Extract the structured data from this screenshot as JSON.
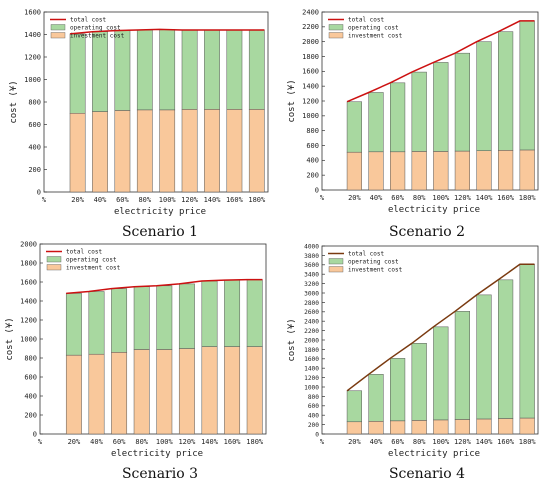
{
  "chart_data": [
    {
      "type": "bar",
      "caption": "Scenario 1",
      "ylabel": "cost (¥)",
      "xlabel": "electricity price",
      "ylim": [
        0,
        1600
      ],
      "ytick_step": 200,
      "x_leading_label": "%",
      "categories": [
        "20%",
        "40%",
        "60%",
        "80%",
        "100%",
        "120%",
        "140%",
        "160%",
        "180%"
      ],
      "legend": {
        "position": "top-left",
        "entries": [
          "total cost",
          "operating cost",
          "investment cost"
        ]
      },
      "series": [
        {
          "name": "investment cost",
          "values": [
            700,
            715,
            725,
            730,
            730,
            735,
            735,
            735,
            735
          ]
        },
        {
          "name": "operating cost",
          "values": [
            705,
            710,
            710,
            710,
            715,
            705,
            705,
            705,
            705
          ]
        },
        {
          "name": "total cost",
          "values": [
            1405,
            1425,
            1435,
            1440,
            1445,
            1440,
            1440,
            1440,
            1440
          ]
        }
      ]
    },
    {
      "type": "bar",
      "caption": "Scenario 2",
      "ylabel": "cost (¥)",
      "xlabel": "electricity price",
      "ylim": [
        0,
        2400
      ],
      "ytick_step": 200,
      "x_leading_label": "%",
      "categories": [
        "20%",
        "40%",
        "60%",
        "80%",
        "100%",
        "120%",
        "140%",
        "160%",
        "180%"
      ],
      "legend": {
        "position": "top-left",
        "entries": [
          "total cost",
          "operating cost",
          "investment cost"
        ]
      },
      "series": [
        {
          "name": "investment cost",
          "values": [
            510,
            515,
            515,
            520,
            520,
            525,
            530,
            535,
            540
          ]
        },
        {
          "name": "operating cost",
          "values": [
            680,
            800,
            930,
            1070,
            1200,
            1320,
            1470,
            1600,
            1740
          ]
        },
        {
          "name": "total cost",
          "values": [
            1190,
            1315,
            1445,
            1590,
            1720,
            1845,
            2000,
            2135,
            2280
          ]
        }
      ]
    },
    {
      "type": "bar",
      "caption": "Scenario 3",
      "ylabel": "cost (¥)",
      "xlabel": "electricity price",
      "ylim": [
        0,
        2000
      ],
      "ytick_step": 200,
      "x_leading_label": "%",
      "categories": [
        "20%",
        "40%",
        "60%",
        "80%",
        "100%",
        "120%",
        "140%",
        "160%",
        "180%"
      ],
      "legend": {
        "position": "top-left",
        "entries": [
          "total cost",
          "operating cost",
          "investment cost"
        ]
      },
      "series": [
        {
          "name": "investment cost",
          "values": [
            830,
            840,
            860,
            890,
            890,
            900,
            920,
            920,
            920
          ]
        },
        {
          "name": "operating cost",
          "values": [
            650,
            660,
            670,
            660,
            670,
            680,
            690,
            700,
            705
          ]
        },
        {
          "name": "total cost",
          "values": [
            1480,
            1500,
            1530,
            1550,
            1560,
            1580,
            1610,
            1620,
            1625
          ]
        }
      ]
    },
    {
      "type": "bar",
      "caption": "Scenario 4",
      "ylabel": "cost (¥)",
      "xlabel": "electricity price",
      "ylim": [
        0,
        4000
      ],
      "ytick_step": 200,
      "x_leading_label": "%",
      "categories": [
        "20%",
        "40%",
        "60%",
        "80%",
        "100%",
        "120%",
        "140%",
        "160%",
        "180%"
      ],
      "legend": {
        "position": "top-left",
        "entries": [
          "total cost",
          "operating cost",
          "investment cost"
        ]
      },
      "series": [
        {
          "name": "investment cost",
          "values": [
            260,
            270,
            280,
            290,
            300,
            310,
            320,
            330,
            340
          ]
        },
        {
          "name": "operating cost",
          "values": [
            660,
            1000,
            1330,
            1640,
            1980,
            2300,
            2640,
            2950,
            3270
          ]
        },
        {
          "name": "total cost",
          "values": [
            920,
            1270,
            1610,
            1930,
            2280,
            2610,
            2960,
            3280,
            3610
          ]
        }
      ]
    }
  ],
  "colors": {
    "investment": "#f9c89b",
    "operating": "#a8d8a0",
    "total": "#cc1111",
    "total_scenario4": "#7a3a10",
    "bar_edge": "#555555",
    "axis": "#333333"
  }
}
